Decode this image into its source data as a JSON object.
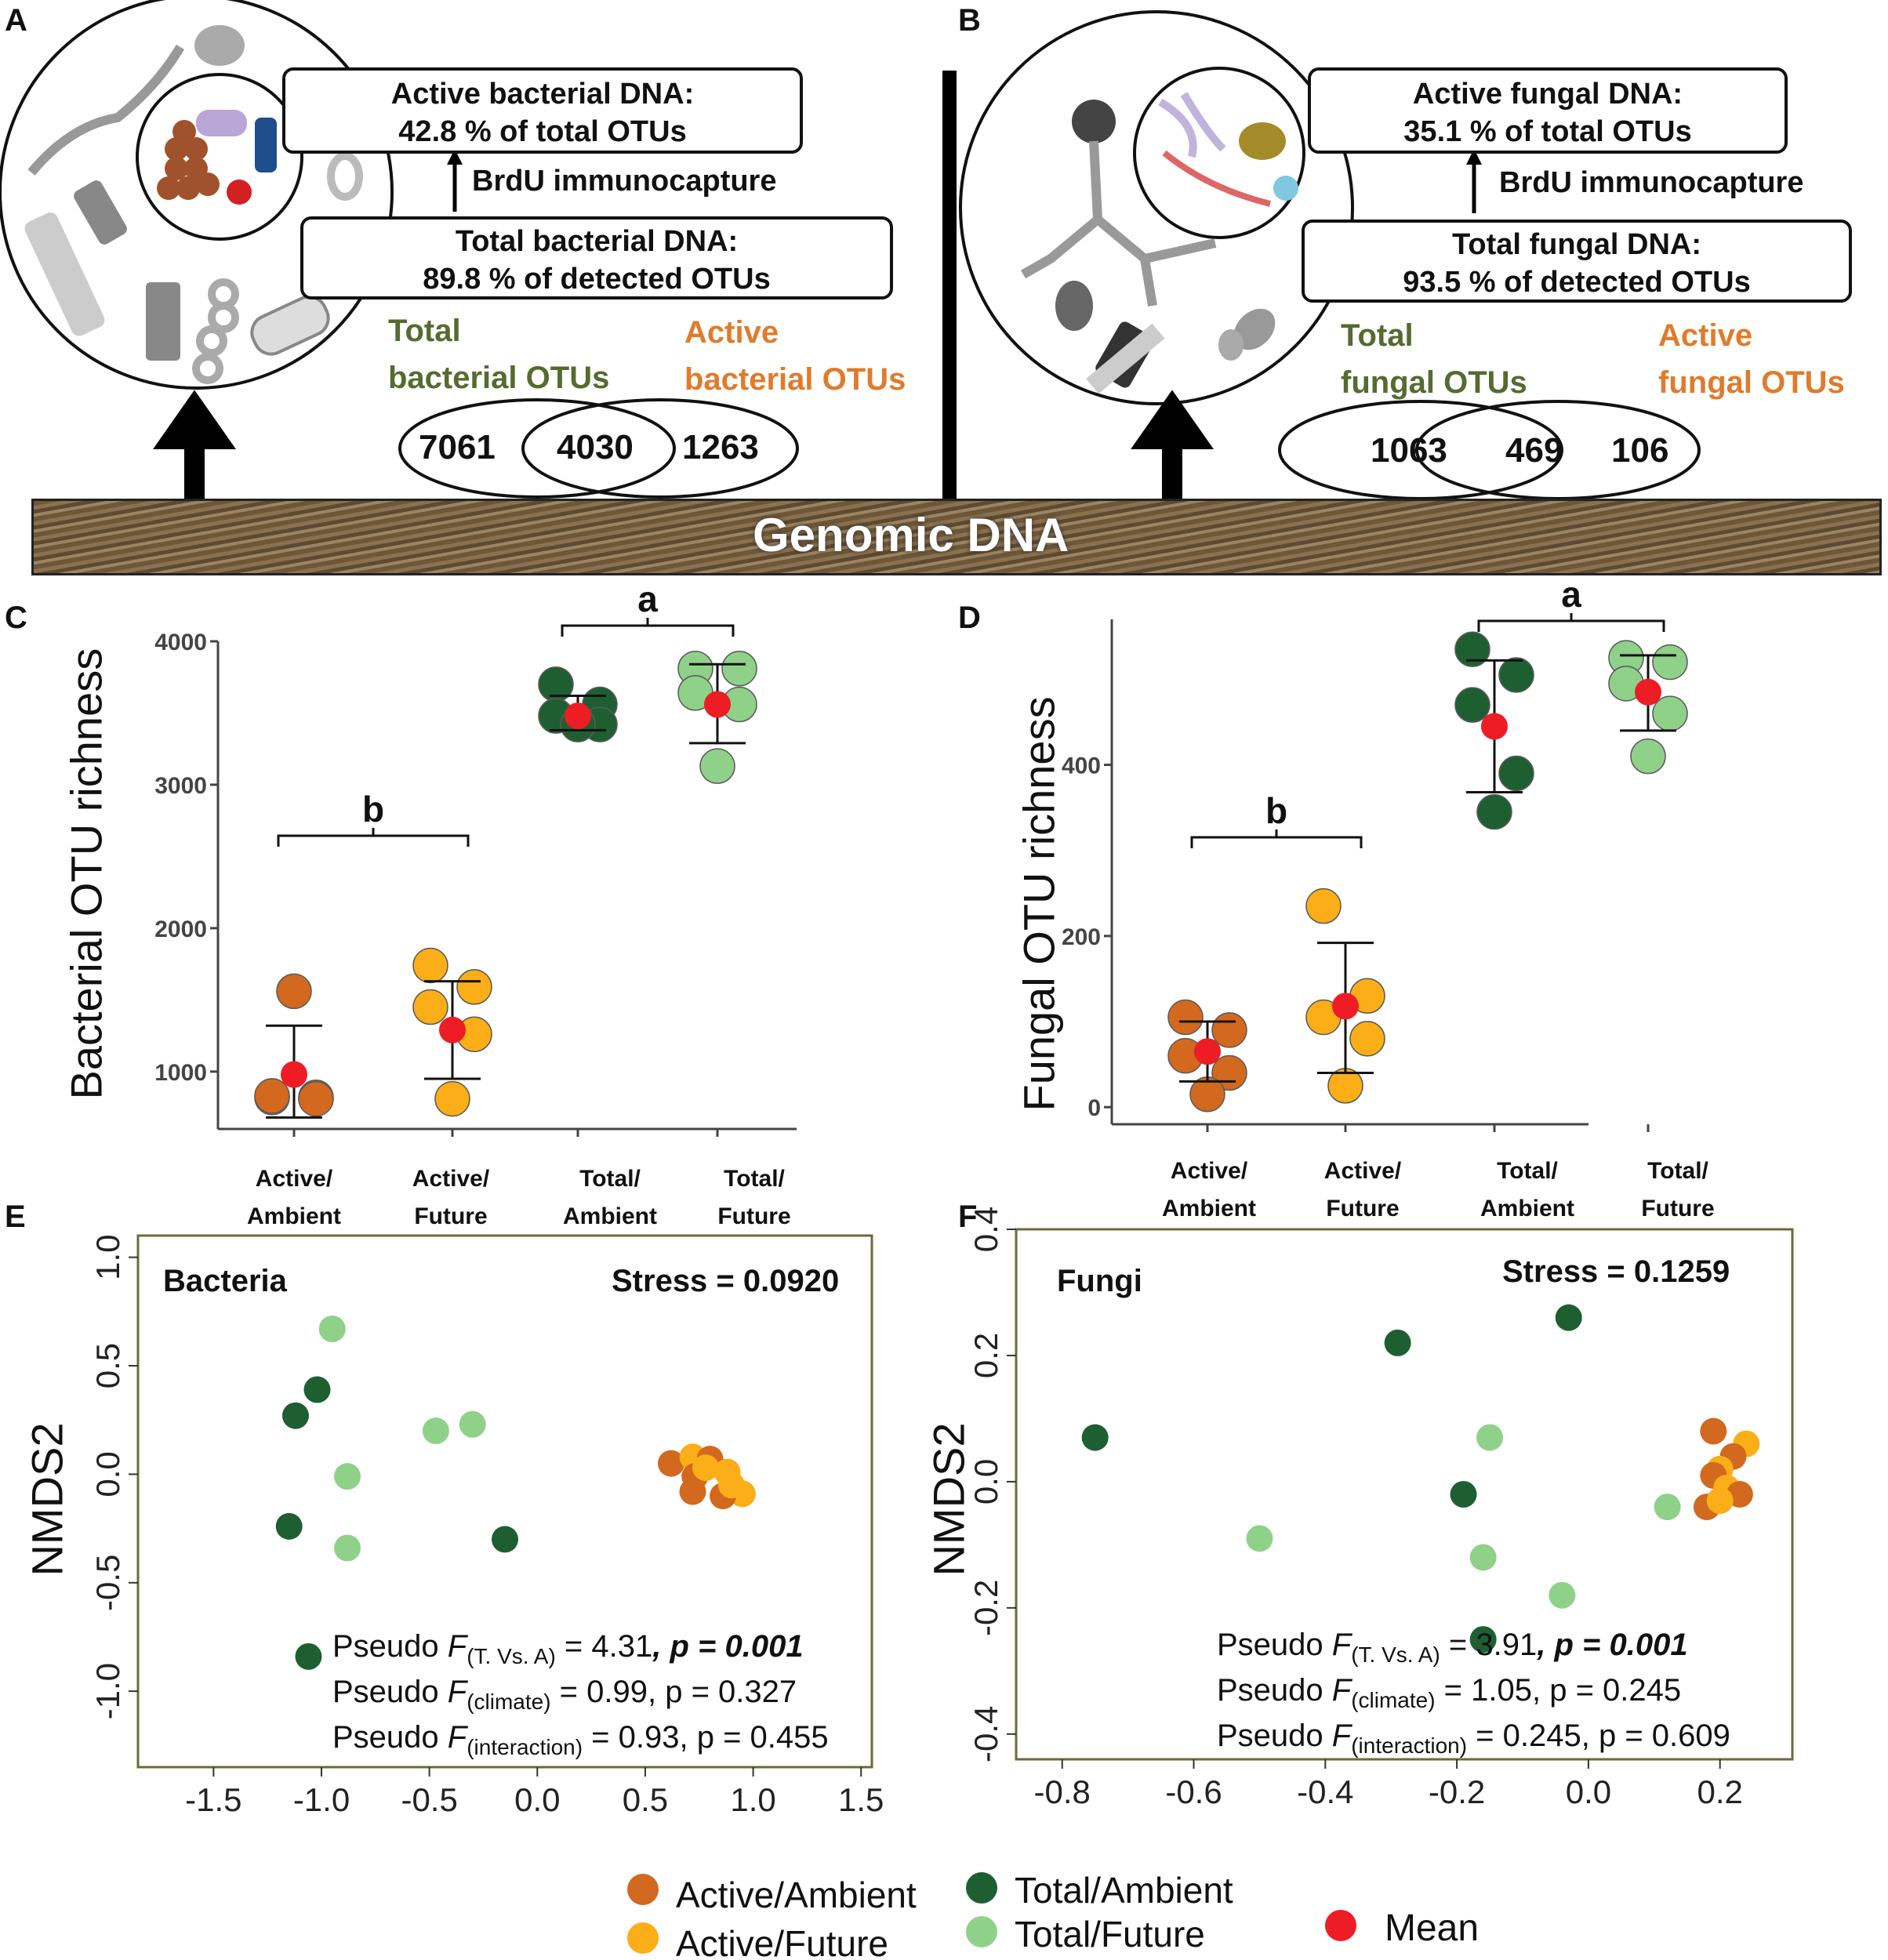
{
  "panel_labels": {
    "a": "A",
    "b": "B",
    "c": "C",
    "d": "D",
    "e": "E",
    "f": "F"
  },
  "panelA": {
    "active_title": "Active bacterial DNA:",
    "active_value": "42.8 % of total OTUs",
    "capture": "BrdU immunocapture",
    "total_title": "Total bacterial DNA:",
    "total_value": "89.8 % of detected OTUs",
    "total_label_1": "Total",
    "total_label_2": "bacterial OTUs",
    "active_label_1": "Active",
    "active_label_2": "bacterial OTUs",
    "venn_left": "7061",
    "venn_mid": "4030",
    "venn_right": "1263"
  },
  "panelB": {
    "active_title": "Active fungal DNA:",
    "active_value": "35.1 % of total OTUs",
    "capture": "BrdU immunocapture",
    "total_title": "Total fungal DNA:",
    "total_value": "93.5 % of detected OTUs",
    "total_label_1": "Total",
    "total_label_2": "fungal OTUs",
    "active_label_1": "Active",
    "active_label_2": "fungal OTUs",
    "venn_left": "1063",
    "venn_mid": "469",
    "venn_right": "106"
  },
  "genomic_dna": "Genomic DNA",
  "colors": {
    "active_ambient": "#d2691e",
    "active_future": "#fbae17",
    "total_ambient": "#1e5f32",
    "total_future": "#90d18a",
    "mean": "#ee1c25"
  },
  "categories": [
    {
      "line1": "Active/",
      "line2": "Ambient"
    },
    {
      "line1": "Active/",
      "line2": "Future"
    },
    {
      "line1": "Total/",
      "line2": "Ambient"
    },
    {
      "line1": "Total/",
      "line2": "Future"
    }
  ],
  "chart_data": [
    {
      "id": "C",
      "type": "scatter",
      "ylabel": "Bacterial OTU richness",
      "ylim": [
        600,
        4000
      ],
      "yticks": [
        "1000",
        "2000",
        "3000",
        "4000"
      ],
      "yticks_num": [
        1000,
        2000,
        3000,
        4000
      ],
      "groups": [
        {
          "name": "Active/Ambient",
          "color": "active_ambient",
          "points": [
            820,
            820,
            830,
            810,
            1560
          ],
          "mean": 980,
          "err": [
            680,
            1320
          ]
        },
        {
          "name": "Active/Future",
          "color": "active_future",
          "points": [
            1740,
            1590,
            1450,
            1260,
            810
          ],
          "mean": 1290,
          "err": [
            950,
            1630
          ]
        },
        {
          "name": "Total/Ambient",
          "color": "total_ambient",
          "points": [
            3700,
            3560,
            3480,
            3420,
            3420
          ],
          "mean": 3480,
          "err": [
            3380,
            3620
          ]
        },
        {
          "name": "Total/Future",
          "color": "total_future",
          "points": [
            3810,
            3810,
            3640,
            3560,
            3130
          ],
          "mean": 3560,
          "err": [
            3290,
            3840
          ]
        }
      ],
      "sig_left": "b",
      "sig_right": "a"
    },
    {
      "id": "D",
      "type": "scatter",
      "ylabel": "Fungal OTU richness",
      "ylim": [
        -20,
        570
      ],
      "yticks": [
        "0",
        "200",
        "400"
      ],
      "yticks_num": [
        0,
        200,
        400
      ],
      "groups": [
        {
          "name": "Active/Ambient",
          "color": "active_ambient",
          "points": [
            105,
            90,
            60,
            40,
            15
          ],
          "mean": 65,
          "err": [
            30,
            100
          ]
        },
        {
          "name": "Active/Future",
          "color": "active_future",
          "points": [
            235,
            130,
            105,
            80,
            25
          ],
          "mean": 118,
          "err": [
            40,
            192
          ]
        },
        {
          "name": "Total/Ambient",
          "color": "total_ambient",
          "points": [
            535,
            505,
            470,
            390,
            345
          ],
          "mean": 445,
          "err": [
            368,
            522
          ]
        },
        {
          "name": "Total/Future",
          "color": "total_future",
          "points": [
            525,
            520,
            495,
            460,
            410
          ],
          "mean": 485,
          "err": [
            440,
            528
          ]
        }
      ],
      "sig_left": "b",
      "sig_right": "a"
    },
    {
      "id": "E",
      "type": "scatter",
      "title": "Bacteria",
      "stress": "Stress = 0.0920",
      "ylabel": "NMDS2",
      "xlim": [
        -1.85,
        1.55
      ],
      "ylim": [
        -1.35,
        1.1
      ],
      "xticks": [
        "-1.5",
        "-1.0",
        "-0.5",
        "0.0",
        "0.5",
        "1.0",
        "1.5"
      ],
      "xticks_num": [
        -1.5,
        -1.0,
        -0.5,
        0.0,
        0.5,
        1.0,
        1.5
      ],
      "yticks": [
        "-1.0",
        "-0.5",
        "0.0",
        "0.5",
        "1.0"
      ],
      "yticks_num": [
        -1.0,
        -0.5,
        0.0,
        0.5,
        1.0
      ],
      "points": [
        {
          "g": "total_future",
          "x": -0.95,
          "y": 0.67
        },
        {
          "g": "total_ambient",
          "x": -1.02,
          "y": 0.39
        },
        {
          "g": "total_ambient",
          "x": -1.12,
          "y": 0.27
        },
        {
          "g": "total_future",
          "x": -0.47,
          "y": 0.2
        },
        {
          "g": "total_future",
          "x": -0.3,
          "y": 0.23
        },
        {
          "g": "total_future",
          "x": -0.88,
          "y": -0.01
        },
        {
          "g": "total_ambient",
          "x": -1.15,
          "y": -0.24
        },
        {
          "g": "total_future",
          "x": -0.88,
          "y": -0.34
        },
        {
          "g": "total_ambient",
          "x": -0.15,
          "y": -0.3
        },
        {
          "g": "total_ambient",
          "x": -1.06,
          "y": -0.84
        },
        {
          "g": "active_ambient",
          "x": 0.62,
          "y": 0.05
        },
        {
          "g": "active_future",
          "x": 0.72,
          "y": 0.08
        },
        {
          "g": "active_ambient",
          "x": 0.8,
          "y": 0.07
        },
        {
          "g": "active_future",
          "x": 0.88,
          "y": 0.01
        },
        {
          "g": "active_ambient",
          "x": 0.73,
          "y": -0.01
        },
        {
          "g": "active_future",
          "x": 0.95,
          "y": -0.09
        },
        {
          "g": "active_ambient",
          "x": 0.72,
          "y": -0.08
        },
        {
          "g": "active_ambient",
          "x": 0.86,
          "y": -0.1
        },
        {
          "g": "active_future",
          "x": 0.9,
          "y": -0.05
        },
        {
          "g": "active_future",
          "x": 0.78,
          "y": 0.03
        }
      ],
      "stats": [
        {
          "pre": "Pseudo ",
          "F": "F",
          "sub": "(T. Vs. A)",
          "val": " = 4.31",
          "p": ", p = 0.001",
          "bold_p": true
        },
        {
          "pre": "Pseudo ",
          "F": "F",
          "sub": "(climate)",
          "val": " = 0.99",
          "p": ", p = 0.327",
          "bold_p": false
        },
        {
          "pre": "Pseudo ",
          "F": "F",
          "sub": "(interaction)",
          "val": " = 0.93",
          "p": ", p = 0.455",
          "bold_p": false
        }
      ]
    },
    {
      "id": "F",
      "type": "scatter",
      "title": "Fungi",
      "stress": "Stress = 0.1259",
      "ylabel": "NMDS2",
      "xlim": [
        -0.87,
        0.31
      ],
      "ylim": [
        -0.44,
        0.4
      ],
      "xticks": [
        "-0.8",
        "-0.6",
        "-0.4",
        "-0.2",
        "0.0",
        "0.2"
      ],
      "xticks_num": [
        -0.8,
        -0.6,
        -0.4,
        -0.2,
        0.0,
        0.2
      ],
      "yticks": [
        "-0.4",
        "-0.2",
        "0.0",
        "0.2",
        "0.4"
      ],
      "yticks_num": [
        -0.4,
        -0.2,
        0.0,
        0.2,
        0.4
      ],
      "points": [
        {
          "g": "total_ambient",
          "x": -0.75,
          "y": 0.07
        },
        {
          "g": "total_ambient",
          "x": -0.29,
          "y": 0.22
        },
        {
          "g": "total_ambient",
          "x": -0.03,
          "y": 0.26
        },
        {
          "g": "total_future",
          "x": -0.15,
          "y": 0.07
        },
        {
          "g": "total_ambient",
          "x": -0.19,
          "y": -0.02
        },
        {
          "g": "total_future",
          "x": -0.5,
          "y": -0.09
        },
        {
          "g": "total_future",
          "x": -0.16,
          "y": -0.12
        },
        {
          "g": "total_future",
          "x": -0.04,
          "y": -0.18
        },
        {
          "g": "total_ambient",
          "x": -0.16,
          "y": -0.25
        },
        {
          "g": "total_future",
          "x": 0.12,
          "y": -0.04
        },
        {
          "g": "active_ambient",
          "x": 0.19,
          "y": 0.08
        },
        {
          "g": "active_future",
          "x": 0.24,
          "y": 0.06
        },
        {
          "g": "active_ambient",
          "x": 0.22,
          "y": 0.04
        },
        {
          "g": "active_future",
          "x": 0.2,
          "y": 0.02
        },
        {
          "g": "active_ambient",
          "x": 0.19,
          "y": 0.01
        },
        {
          "g": "active_future",
          "x": 0.21,
          "y": -0.01
        },
        {
          "g": "active_ambient",
          "x": 0.23,
          "y": -0.02
        },
        {
          "g": "active_ambient",
          "x": 0.18,
          "y": -0.04
        },
        {
          "g": "active_future",
          "x": 0.2,
          "y": -0.03
        }
      ],
      "stats": [
        {
          "pre": "Pseudo ",
          "F": "F",
          "sub": "(T. Vs. A)",
          "val": " = 3.91",
          "p": ", p = 0.001",
          "bold_p": true
        },
        {
          "pre": "Pseudo ",
          "F": "F",
          "sub": "(climate)",
          "val": " = 1.05",
          "p": ", p = 0.245",
          "bold_p": false
        },
        {
          "pre": "Pseudo ",
          "F": "F",
          "sub": "(interaction)",
          "val": " = 0.245",
          "p": ", p = 0.609",
          "bold_p": false
        }
      ]
    }
  ],
  "legend": {
    "active_ambient": "Active/Ambient",
    "active_future": "Active/Future",
    "total_ambient": "Total/Ambient",
    "total_future": "Total/Future",
    "mean": "Mean"
  }
}
